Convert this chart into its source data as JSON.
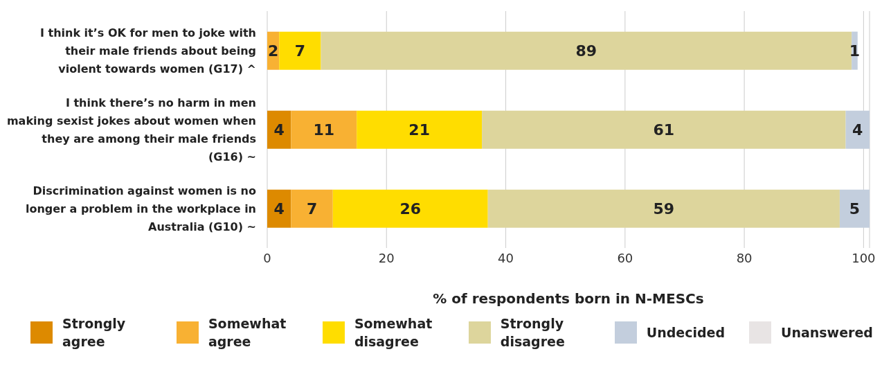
{
  "chart_data": {
    "type": "bar",
    "orientation": "horizontal",
    "stacked": true,
    "xlabel": "% of respondents born in N-MESCs",
    "categories": [
      "I think it’s OK for men to joke with their male friends about being violent towards women (G17) ^",
      "I think there’s no harm in men making sexist jokes about women when they are among their male friends (G16) ~",
      "Discrimination against women is no longer a problem in the workplace in Australia (G10) ~"
    ],
    "series": [
      {
        "name": "Strongly agree",
        "color": "#dd8a00",
        "values": [
          null,
          4,
          4
        ]
      },
      {
        "name": "Somewhat agree",
        "color": "#f8b133",
        "values": [
          2,
          11,
          7
        ]
      },
      {
        "name": "Somewhat disagree",
        "color": "#ffdd00",
        "values": [
          7,
          21,
          26
        ]
      },
      {
        "name": "Strongly disagree",
        "color": "#ddd59c",
        "values": [
          89,
          61,
          59
        ]
      },
      {
        "name": "Undecided",
        "color": "#c3cedd",
        "values": [
          1,
          4,
          5
        ]
      },
      {
        "name": "Unanswered",
        "color": "#e8e4e4",
        "values": [
          null,
          null,
          null
        ]
      }
    ],
    "xlim": [
      0,
      101
    ],
    "xticks": [
      0,
      20,
      40,
      60,
      80,
      100
    ],
    "grid": "x",
    "data_labels": true,
    "legend": "bottom"
  }
}
